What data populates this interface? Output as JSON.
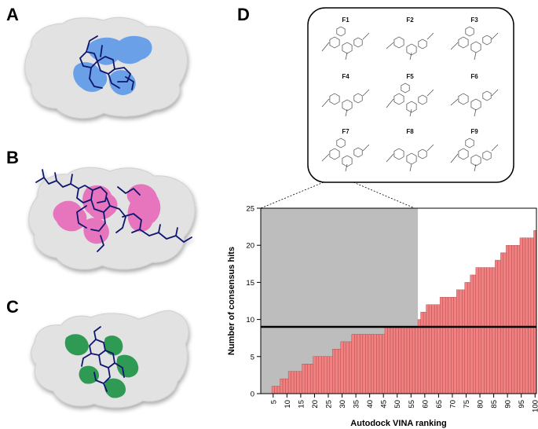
{
  "panels": {
    "a": "A",
    "b": "B",
    "c": "C",
    "d": "D"
  },
  "colors": {
    "surface": "#e2e2e2",
    "panel_a_site": "#6aa0e8",
    "panel_b_site": "#e675be",
    "panel_c_site": "#2e9a52",
    "ligand": "#10186e",
    "bar_fill": "#f28080",
    "shaded_region": "#bdbdbd"
  },
  "inset": {
    "compounds": [
      "F1",
      "F2",
      "F3",
      "F4",
      "F5",
      "F6",
      "F7",
      "F8",
      "F9"
    ]
  },
  "chart_data": {
    "type": "bar",
    "xlabel": "Autodock VINA ranking",
    "ylabel": "Number of consensus hits",
    "xlim": [
      1,
      100
    ],
    "ylim": [
      0,
      25
    ],
    "x_ticks": [
      5,
      10,
      15,
      20,
      25,
      30,
      35,
      40,
      45,
      50,
      55,
      60,
      65,
      70,
      75,
      80,
      85,
      90,
      95,
      100
    ],
    "y_ticks": [
      0,
      5,
      10,
      15,
      20,
      25
    ],
    "threshold": 9,
    "shaded_until_rank": 57,
    "values": [
      0,
      0,
      0,
      0,
      1,
      1,
      1,
      2,
      2,
      2,
      3,
      3,
      3,
      3,
      3,
      4,
      4,
      4,
      4,
      5,
      5,
      5,
      5,
      5,
      5,
      5,
      6,
      6,
      6,
      7,
      7,
      7,
      7,
      8,
      8,
      8,
      8,
      8,
      8,
      8,
      8,
      8,
      8,
      8,
      8,
      9,
      9,
      9,
      9,
      9,
      9,
      9,
      9,
      9,
      9,
      9,
      9,
      10,
      11,
      11,
      12,
      12,
      12,
      12,
      12,
      13,
      13,
      13,
      13,
      13,
      13,
      14,
      14,
      14,
      15,
      15,
      16,
      16,
      17,
      17,
      17,
      17,
      17,
      17,
      17,
      18,
      18,
      19,
      19,
      20,
      20,
      20,
      20,
      20,
      21,
      21,
      21,
      21,
      21,
      22
    ]
  }
}
